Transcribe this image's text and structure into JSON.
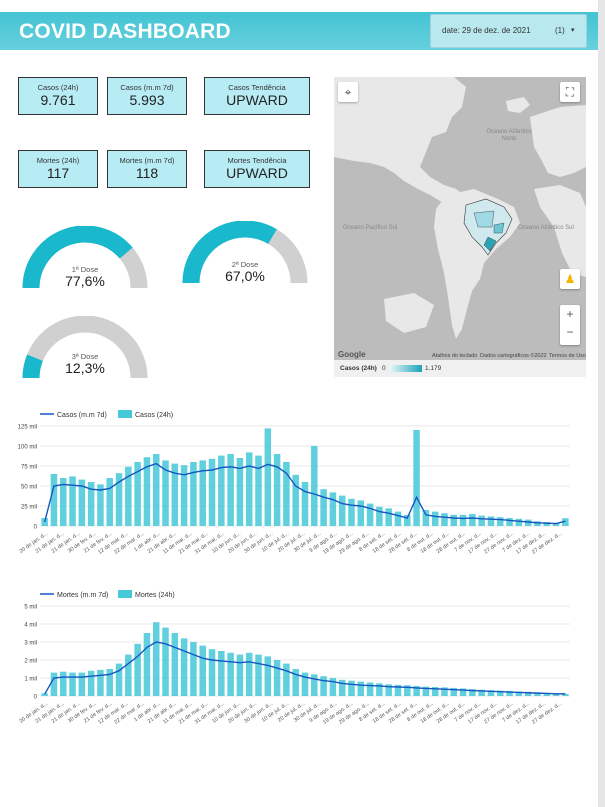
{
  "header": {
    "title": "COVID DASHBOARD",
    "date_label": "date: 29 de dez. de 2021",
    "date_count": "(1)",
    "caret": "▾"
  },
  "kpis": [
    {
      "label": "Casos (24h)",
      "value": "9.761"
    },
    {
      "label": "Casos (m.m 7d)",
      "value": "5.993"
    },
    {
      "label": "Casos Tendência",
      "value": "UPWARD"
    },
    {
      "label": "Mortes (24h)",
      "value": "117"
    },
    {
      "label": "Mortes (m.m 7d)",
      "value": "118"
    },
    {
      "label": "Mortes Tendência",
      "value": "UPWARD"
    }
  ],
  "gauges": [
    {
      "label": "1ª Dose",
      "value": "77,6%",
      "fraction": 0.776
    },
    {
      "label": "2ª Dose",
      "value": "67,0%",
      "fraction": 0.67
    },
    {
      "label": "3ª Dose",
      "value": "12,3%",
      "fraction": 0.123
    }
  ],
  "colors": {
    "accent": "#1ab8cc",
    "gauge_bg": "#d0d0d0",
    "line": "#1557c0",
    "bar": "#45c8d8",
    "header": "#4cc6d6",
    "kpi_bg": "#b8ecf4"
  },
  "map": {
    "labels": [
      "Oceano Atlântico Norte",
      "Oceano Pacífico Sul",
      "Oceano Atlântico Sul"
    ],
    "footer": {
      "google": "Google",
      "shortcuts": "Atalhos do teclado",
      "mapdata": "Dados cartográficos ©2022",
      "terms": "Termos de Uso"
    },
    "legend": {
      "title": "Casos (24h)",
      "min": "0",
      "max": "1.179"
    },
    "icons": [
      "fullscreen-icon",
      "select-area-icon",
      "pegman-icon",
      "zoom-in-icon",
      "zoom-out-icon"
    ]
  },
  "chart_data": [
    {
      "type": "bar",
      "legend": [
        "Casos (m.m 7d)",
        "Casos (24h)"
      ],
      "y_ticks": [
        "0",
        "25 mil",
        "50 mil",
        "75 mil",
        "100 mil",
        "125 mil"
      ],
      "ylim": [
        0,
        125000
      ],
      "x_ticks": [
        "20 de jan. d...",
        "21 de jan. d...",
        "21 de jan. d...",
        "30 de fev. d...",
        "21 de fev. d...",
        "12 de mar. d...",
        "22 de mar. d...",
        "1 de abr. d...",
        "21 de abr. d...",
        "11 de mai. d...",
        "21 de mai. d...",
        "31 de mai. d...",
        "10 de jun. d...",
        "20 de jun. d...",
        "30 de jun. d...",
        "10 de jul. d...",
        "20 de jul. d...",
        "30 de jul. d...",
        "9 de ago. d...",
        "19 de ago. d...",
        "29 de ago. d...",
        "8 de set. d...",
        "18 de set. d...",
        "28 de set. d...",
        "8 de out. d...",
        "18 de out. d...",
        "28 de out. d...",
        "7 de nov. d...",
        "17 de nov. d...",
        "27 de nov. d...",
        "7 de dez. d...",
        "17 de dez. d...",
        "27 de dez. d..."
      ],
      "series": [
        {
          "name": "Casos (m.m 7d)",
          "values": [
            5000,
            50000,
            52000,
            51000,
            50000,
            46000,
            45000,
            47000,
            55000,
            62000,
            68000,
            74000,
            78000,
            70000,
            66000,
            64000,
            67000,
            69000,
            70000,
            73000,
            74000,
            72000,
            75000,
            72000,
            77000,
            74000,
            66000,
            50000,
            43000,
            40000,
            36000,
            33000,
            28000,
            26000,
            25000,
            22000,
            18000,
            16000,
            13000,
            10000,
            36000,
            14000,
            12000,
            11000,
            10000,
            9500,
            10000,
            9000,
            8500,
            8000,
            7000,
            6000,
            5000,
            4000,
            3500,
            3000,
            6000
          ]
        },
        {
          "name": "Casos (24h)",
          "values": [
            10000,
            65000,
            60000,
            62000,
            58000,
            55000,
            52000,
            60000,
            66000,
            74000,
            80000,
            86000,
            90000,
            82000,
            78000,
            76000,
            80000,
            82000,
            84000,
            88000,
            90000,
            85000,
            92000,
            88000,
            122000,
            90000,
            80000,
            64000,
            55000,
            100000,
            46000,
            42000,
            38000,
            34000,
            32000,
            28000,
            24000,
            22000,
            18000,
            14000,
            120000,
            20000,
            18000,
            16000,
            14000,
            14000,
            15000,
            13000,
            12000,
            11000,
            10000,
            9000,
            8000,
            6000,
            5000,
            4000,
            9761
          ]
        }
      ]
    },
    {
      "type": "bar",
      "legend": [
        "Mortes (m.m 7d)",
        "Mortes (24h)"
      ],
      "y_ticks": [
        "0",
        "1 mil",
        "2 mil",
        "3 mil",
        "4 mil",
        "5 mil"
      ],
      "ylim": [
        0,
        5000
      ],
      "x_ticks": [
        "20 de jan. d...",
        "21 de jan. d...",
        "21 de jan. d...",
        "30 de fev. d...",
        "21 de fev. d...",
        "12 de mar. d...",
        "22 de mar. d...",
        "1 de abr. d...",
        "21 de abr. d...",
        "11 de mai. d...",
        "21 de mai. d...",
        "31 de mai. d...",
        "10 de jun. d...",
        "20 de jun. d...",
        "30 de jun. d...",
        "10 de jul. d...",
        "20 de jul. d...",
        "30 de jul. d...",
        "9 de ago. d...",
        "19 de ago. d...",
        "29 de ago. d...",
        "8 de set. d...",
        "18 de set. d...",
        "28 de set. d...",
        "8 de out. d...",
        "18 de out. d...",
        "28 de out. d...",
        "7 de nov. d...",
        "17 de nov. d...",
        "27 de nov. d...",
        "7 de dez. d...",
        "17 de dez. d...",
        "27 de dez. d..."
      ],
      "series": [
        {
          "name": "Mortes (m.m 7d)",
          "values": [
            100,
            1000,
            1050,
            1050,
            1050,
            1100,
            1150,
            1200,
            1400,
            1800,
            2200,
            2700,
            3000,
            2900,
            2700,
            2500,
            2300,
            2100,
            2000,
            1950,
            1900,
            1850,
            1900,
            1800,
            1700,
            1550,
            1400,
            1200,
            1050,
            950,
            850,
            800,
            700,
            650,
            600,
            580,
            560,
            520,
            500,
            480,
            450,
            420,
            400,
            380,
            350,
            330,
            300,
            280,
            260,
            240,
            220,
            200,
            180,
            160,
            140,
            120,
            118
          ]
        },
        {
          "name": "Mortes (24h)",
          "values": [
            150,
            1300,
            1350,
            1300,
            1300,
            1400,
            1450,
            1500,
            1800,
            2300,
            2900,
            3500,
            4100,
            3800,
            3500,
            3200,
            3000,
            2800,
            2600,
            2500,
            2400,
            2300,
            2400,
            2300,
            2200,
            2000,
            1800,
            1500,
            1300,
            1200,
            1100,
            1000,
            900,
            850,
            800,
            750,
            700,
            650,
            620,
            600,
            560,
            520,
            500,
            480,
            450,
            420,
            380,
            350,
            320,
            300,
            280,
            250,
            230,
            200,
            170,
            150,
            117
          ]
        }
      ]
    }
  ]
}
